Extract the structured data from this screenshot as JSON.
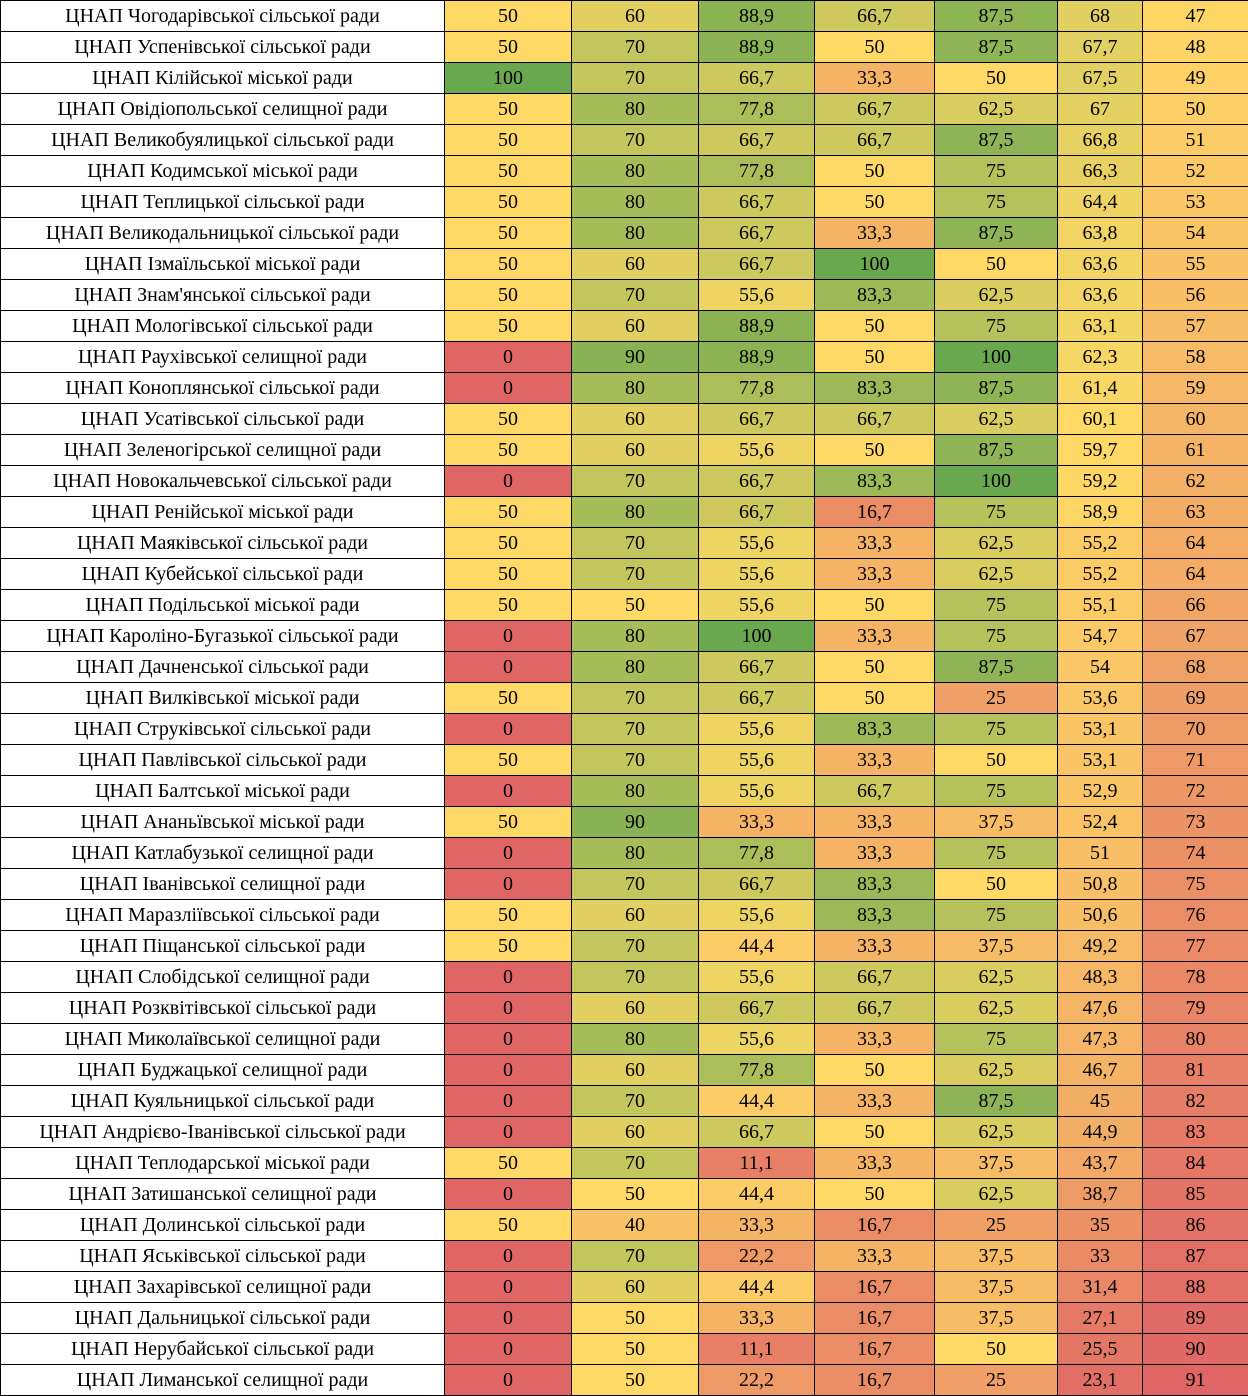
{
  "colors": {
    "scale_low": "#E06666",
    "scale_mid": "#FFD966",
    "scale_high": "#6AA84F"
  },
  "table": {
    "rows": [
      {
        "name": "ЦНАП Чогодарівської сільської ради",
        "c1": "50",
        "c2": "60",
        "c3": "88,9",
        "c4": "66,7",
        "c5": "87,5",
        "total": "68",
        "rank": "47"
      },
      {
        "name": "ЦНАП Успенівської сільської ради",
        "c1": "50",
        "c2": "70",
        "c3": "88,9",
        "c4": "50",
        "c5": "87,5",
        "total": "67,7",
        "rank": "48"
      },
      {
        "name": "ЦНАП Кілійської міської ради",
        "c1": "100",
        "c2": "70",
        "c3": "66,7",
        "c4": "33,3",
        "c5": "50",
        "total": "67,5",
        "rank": "49"
      },
      {
        "name": "ЦНАП Овідіопольської селищної ради",
        "c1": "50",
        "c2": "80",
        "c3": "77,8",
        "c4": "66,7",
        "c5": "62,5",
        "total": "67",
        "rank": "50"
      },
      {
        "name": "ЦНАП Великобуялицької сільської ради",
        "c1": "50",
        "c2": "70",
        "c3": "66,7",
        "c4": "66,7",
        "c5": "87,5",
        "total": "66,8",
        "rank": "51"
      },
      {
        "name": "ЦНАП Кодимської міської ради",
        "c1": "50",
        "c2": "80",
        "c3": "77,8",
        "c4": "50",
        "c5": "75",
        "total": "66,3",
        "rank": "52"
      },
      {
        "name": "ЦНАП Теплицької сільської ради",
        "c1": "50",
        "c2": "80",
        "c3": "66,7",
        "c4": "50",
        "c5": "75",
        "total": "64,4",
        "rank": "53"
      },
      {
        "name": "ЦНАП Великодальницької сільської ради",
        "c1": "50",
        "c2": "80",
        "c3": "66,7",
        "c4": "33,3",
        "c5": "87,5",
        "total": "63,8",
        "rank": "54"
      },
      {
        "name": "ЦНАП Ізмаїльської міської ради",
        "c1": "50",
        "c2": "60",
        "c3": "66,7",
        "c4": "100",
        "c5": "50",
        "total": "63,6",
        "rank": "55"
      },
      {
        "name": "ЦНАП Знам'янської сільської ради",
        "c1": "50",
        "c2": "70",
        "c3": "55,6",
        "c4": "83,3",
        "c5": "62,5",
        "total": "63,6",
        "rank": "56"
      },
      {
        "name": "ЦНАП Мологівської сільської ради",
        "c1": "50",
        "c2": "60",
        "c3": "88,9",
        "c4": "50",
        "c5": "75",
        "total": "63,1",
        "rank": "57"
      },
      {
        "name": "ЦНАП Раухівської селищної ради",
        "c1": "0",
        "c2": "90",
        "c3": "88,9",
        "c4": "50",
        "c5": "100",
        "total": "62,3",
        "rank": "58"
      },
      {
        "name": "ЦНАП Коноплянської сільської ради",
        "c1": "0",
        "c2": "80",
        "c3": "77,8",
        "c4": "83,3",
        "c5": "87,5",
        "total": "61,4",
        "rank": "59"
      },
      {
        "name": "ЦНАП Усатівської сільської ради",
        "c1": "50",
        "c2": "60",
        "c3": "66,7",
        "c4": "66,7",
        "c5": "62,5",
        "total": "60,1",
        "rank": "60"
      },
      {
        "name": "ЦНАП Зеленогірської селищної ради",
        "c1": "50",
        "c2": "60",
        "c3": "55,6",
        "c4": "50",
        "c5": "87,5",
        "total": "59,7",
        "rank": "61"
      },
      {
        "name": "ЦНАП Новокальчевської сільської ради",
        "c1": "0",
        "c2": "70",
        "c3": "66,7",
        "c4": "83,3",
        "c5": "100",
        "total": "59,2",
        "rank": "62"
      },
      {
        "name": "ЦНАП Ренійської міської ради",
        "c1": "50",
        "c2": "80",
        "c3": "66,7",
        "c4": "16,7",
        "c5": "75",
        "total": "58,9",
        "rank": "63"
      },
      {
        "name": "ЦНАП Маяківської сільської ради",
        "c1": "50",
        "c2": "70",
        "c3": "55,6",
        "c4": "33,3",
        "c5": "62,5",
        "total": "55,2",
        "rank": "64"
      },
      {
        "name": "ЦНАП Кубейської сільської ради",
        "c1": "50",
        "c2": "70",
        "c3": "55,6",
        "c4": "33,3",
        "c5": "62,5",
        "total": "55,2",
        "rank": "64"
      },
      {
        "name": "ЦНАП Подільської міської ради",
        "c1": "50",
        "c2": "50",
        "c3": "55,6",
        "c4": "50",
        "c5": "75",
        "total": "55,1",
        "rank": "66"
      },
      {
        "name": "ЦНАП Кароліно-Бугазької сільської ради",
        "c1": "0",
        "c2": "80",
        "c3": "100",
        "c4": "33,3",
        "c5": "75",
        "total": "54,7",
        "rank": "67"
      },
      {
        "name": "ЦНАП Дачненської сільської ради",
        "c1": "0",
        "c2": "80",
        "c3": "66,7",
        "c4": "50",
        "c5": "87,5",
        "total": "54",
        "rank": "68"
      },
      {
        "name": "ЦНАП Вилківської міської ради",
        "c1": "50",
        "c2": "70",
        "c3": "66,7",
        "c4": "50",
        "c5": "25",
        "total": "53,6",
        "rank": "69"
      },
      {
        "name": "ЦНАП Струківської сільської ради",
        "c1": "0",
        "c2": "70",
        "c3": "55,6",
        "c4": "83,3",
        "c5": "75",
        "total": "53,1",
        "rank": "70"
      },
      {
        "name": "ЦНАП Павлівської сільської ради",
        "c1": "50",
        "c2": "70",
        "c3": "55,6",
        "c4": "33,3",
        "c5": "50",
        "total": "53,1",
        "rank": "71"
      },
      {
        "name": "ЦНАП Балтської міської ради",
        "c1": "0",
        "c2": "80",
        "c3": "55,6",
        "c4": "66,7",
        "c5": "75",
        "total": "52,9",
        "rank": "72"
      },
      {
        "name": "ЦНАП Ананьївської міської ради",
        "c1": "50",
        "c2": "90",
        "c3": "33,3",
        "c4": "33,3",
        "c5": "37,5",
        "total": "52,4",
        "rank": "73"
      },
      {
        "name": "ЦНАП Катлабузької селищної ради",
        "c1": "0",
        "c2": "80",
        "c3": "77,8",
        "c4": "33,3",
        "c5": "75",
        "total": "51",
        "rank": "74"
      },
      {
        "name": "ЦНАП Іванівської селищної ради",
        "c1": "0",
        "c2": "70",
        "c3": "66,7",
        "c4": "83,3",
        "c5": "50",
        "total": "50,8",
        "rank": "75"
      },
      {
        "name": "ЦНАП Маразліївської сільської ради",
        "c1": "50",
        "c2": "60",
        "c3": "55,6",
        "c4": "83,3",
        "c5": "75",
        "total": "50,6",
        "rank": "76"
      },
      {
        "name": "ЦНАП Піщанської сільської ради",
        "c1": "50",
        "c2": "70",
        "c3": "44,4",
        "c4": "33,3",
        "c5": "37,5",
        "total": "49,2",
        "rank": "77"
      },
      {
        "name": "ЦНАП Слобідської селищної ради",
        "c1": "0",
        "c2": "70",
        "c3": "55,6",
        "c4": "66,7",
        "c5": "62,5",
        "total": "48,3",
        "rank": "78"
      },
      {
        "name": "ЦНАП Розквітівської сільської ради",
        "c1": "0",
        "c2": "60",
        "c3": "66,7",
        "c4": "66,7",
        "c5": "62,5",
        "total": "47,6",
        "rank": "79"
      },
      {
        "name": "ЦНАП Миколаївської селищної ради",
        "c1": "0",
        "c2": "80",
        "c3": "55,6",
        "c4": "33,3",
        "c5": "75",
        "total": "47,3",
        "rank": "80"
      },
      {
        "name": "ЦНАП Буджацької селищної ради",
        "c1": "0",
        "c2": "60",
        "c3": "77,8",
        "c4": "50",
        "c5": "62,5",
        "total": "46,7",
        "rank": "81"
      },
      {
        "name": "ЦНАП Куяльницької сільської ради",
        "c1": "0",
        "c2": "70",
        "c3": "44,4",
        "c4": "33,3",
        "c5": "87,5",
        "total": "45",
        "rank": "82"
      },
      {
        "name": "ЦНАП Андрієво-Іванівської сільської ради",
        "c1": "0",
        "c2": "60",
        "c3": "66,7",
        "c4": "50",
        "c5": "62,5",
        "total": "44,9",
        "rank": "83"
      },
      {
        "name": "ЦНАП Теплодарської міської ради",
        "c1": "50",
        "c2": "70",
        "c3": "11,1",
        "c4": "33,3",
        "c5": "37,5",
        "total": "43,7",
        "rank": "84"
      },
      {
        "name": "ЦНАП Затишанської селищної ради",
        "c1": "0",
        "c2": "50",
        "c3": "44,4",
        "c4": "50",
        "c5": "62,5",
        "total": "38,7",
        "rank": "85"
      },
      {
        "name": "ЦНАП Долинської сільської ради",
        "c1": "50",
        "c2": "40",
        "c3": "33,3",
        "c4": "16,7",
        "c5": "25",
        "total": "35",
        "rank": "86"
      },
      {
        "name": "ЦНАП Яськівської сільської ради",
        "c1": "0",
        "c2": "70",
        "c3": "22,2",
        "c4": "33,3",
        "c5": "37,5",
        "total": "33",
        "rank": "87"
      },
      {
        "name": "ЦНАП Захарівської селищної ради",
        "c1": "0",
        "c2": "60",
        "c3": "44,4",
        "c4": "16,7",
        "c5": "37,5",
        "total": "31,4",
        "rank": "88"
      },
      {
        "name": "ЦНАП Дальницької сільської ради",
        "c1": "0",
        "c2": "50",
        "c3": "33,3",
        "c4": "16,7",
        "c5": "37,5",
        "total": "27,1",
        "rank": "89"
      },
      {
        "name": "ЦНАП Нерубайської сільської ради",
        "c1": "0",
        "c2": "50",
        "c3": "11,1",
        "c4": "16,7",
        "c5": "50",
        "total": "25,5",
        "rank": "90"
      },
      {
        "name": "ЦНАП Лиманської селищної ради",
        "c1": "0",
        "c2": "50",
        "c3": "22,2",
        "c4": "16,7",
        "c5": "25",
        "total": "23,1",
        "rank": "91"
      }
    ]
  }
}
